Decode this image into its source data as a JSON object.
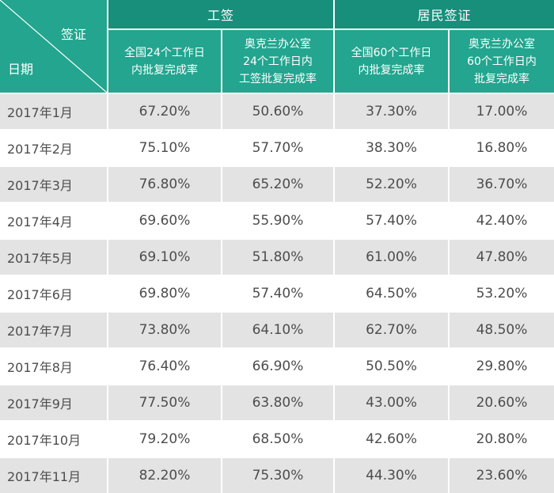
{
  "corner": {
    "top_label": "签证",
    "bottom_label": "日期"
  },
  "groups": [
    {
      "label": "工签"
    },
    {
      "label": "居民签证"
    }
  ],
  "subheaders": [
    [
      "全国24个工作日",
      "内批复完成率"
    ],
    [
      "奥克兰办公室",
      "24个工作日内",
      "工签批复完成率"
    ],
    [
      "全国60个工作日",
      "内批复完成率"
    ],
    [
      "奥克兰办公室",
      "60个工作日内",
      "批复完成率"
    ]
  ],
  "rows": [
    {
      "date": "2017年1月",
      "values": [
        "67.20%",
        "50.60%",
        "37.30%",
        "17.00%"
      ]
    },
    {
      "date": "2017年2月",
      "values": [
        "75.10%",
        "57.70%",
        "38.30%",
        "16.80%"
      ]
    },
    {
      "date": "2017年3月",
      "values": [
        "76.80%",
        "65.20%",
        "52.20%",
        "36.70%"
      ]
    },
    {
      "date": "2017年4月",
      "values": [
        "69.60%",
        "55.90%",
        "57.40%",
        "42.40%"
      ]
    },
    {
      "date": "2017年5月",
      "values": [
        "69.10%",
        "51.80%",
        "61.00%",
        "47.80%"
      ]
    },
    {
      "date": "2017年6月",
      "values": [
        "69.80%",
        "57.40%",
        "64.50%",
        "53.20%"
      ]
    },
    {
      "date": "2017年7月",
      "values": [
        "73.80%",
        "64.10%",
        "62.70%",
        "48.50%"
      ]
    },
    {
      "date": "2017年8月",
      "values": [
        "76.40%",
        "66.90%",
        "50.50%",
        "29.80%"
      ]
    },
    {
      "date": "2017年9月",
      "values": [
        "77.50%",
        "63.80%",
        "43.00%",
        "20.60%"
      ]
    },
    {
      "date": "2017年10月",
      "values": [
        "79.20%",
        "68.50%",
        "42.60%",
        "20.80%"
      ]
    },
    {
      "date": "2017年11月",
      "values": [
        "82.20%",
        "75.30%",
        "44.30%",
        "23.60%"
      ]
    }
  ],
  "colors": {
    "header_green": "#23a58f",
    "group_green": "#178f7b",
    "row_gray": "#e3e3e3"
  }
}
